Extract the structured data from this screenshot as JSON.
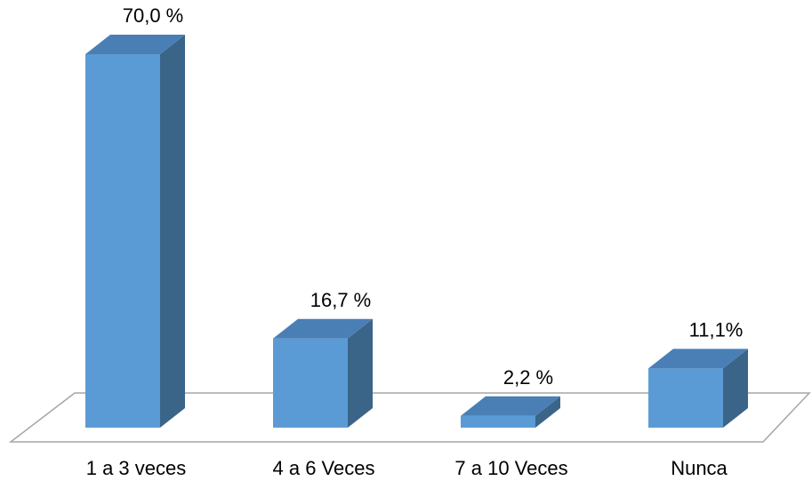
{
  "chart_data": {
    "type": "bar",
    "style": "3d-column",
    "categories": [
      "1 a 3 veces",
      "4 a 6 Veces",
      "7 a 10 Veces",
      "Nunca"
    ],
    "values": [
      70.0,
      16.7,
      2.2,
      11.1
    ],
    "data_labels": [
      "70,0 %",
      "16,7 %",
      "2,2 %",
      "11,1%"
    ],
    "title": "",
    "xlabel": "",
    "ylabel": "",
    "ylim": [
      0,
      70
    ],
    "grid": false,
    "legend": "none",
    "colors": {
      "front": "#5B9BD5",
      "side": "#3B6489",
      "top": "#4A7FB5",
      "floor": "#A6A6A6"
    }
  }
}
